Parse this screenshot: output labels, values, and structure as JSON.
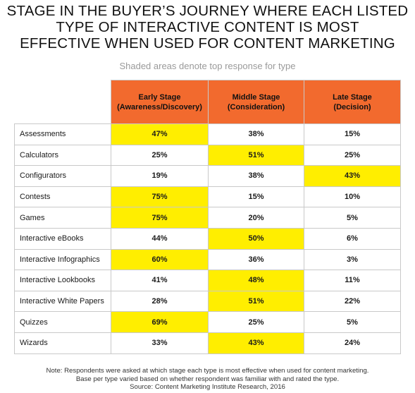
{
  "chart_data": {
    "type": "table",
    "title_lines": [
      "STAGE IN THE BUYER’S JOURNEY WHERE EACH LISTED",
      "TYPE OF INTERACTIVE CONTENT IS MOST",
      "EFFECTIVE WHEN USED FOR CONTENT MARKETING"
    ],
    "subtitle": "Shaded areas denote top response for type",
    "columns": [
      {
        "line1": "Early Stage",
        "line2": "(Awareness/Discovery)"
      },
      {
        "line1": "Middle Stage",
        "line2": "(Consideration)"
      },
      {
        "line1": "Late Stage",
        "line2": "(Decision)"
      }
    ],
    "rows": [
      {
        "label": "Assessments",
        "values": [
          "47%",
          "38%",
          "15%"
        ],
        "top": 0
      },
      {
        "label": "Calculators",
        "values": [
          "25%",
          "51%",
          "25%"
        ],
        "top": 1
      },
      {
        "label": "Configurators",
        "values": [
          "19%",
          "38%",
          "43%"
        ],
        "top": 2
      },
      {
        "label": "Contests",
        "values": [
          "75%",
          "15%",
          "10%"
        ],
        "top": 0
      },
      {
        "label": "Games",
        "values": [
          "75%",
          "20%",
          "5%"
        ],
        "top": 0
      },
      {
        "label": "Interactive eBooks",
        "values": [
          "44%",
          "50%",
          "6%"
        ],
        "top": 1
      },
      {
        "label": "Interactive Infographics",
        "values": [
          "60%",
          "36%",
          "3%"
        ],
        "top": 0
      },
      {
        "label": "Interactive Lookbooks",
        "values": [
          "41%",
          "48%",
          "11%"
        ],
        "top": 1
      },
      {
        "label": "Interactive White Papers",
        "values": [
          "28%",
          "51%",
          "22%"
        ],
        "top": 1
      },
      {
        "label": "Quizzes",
        "values": [
          "69%",
          "25%",
          "5%"
        ],
        "top": 0
      },
      {
        "label": "Wizards",
        "values": [
          "33%",
          "43%",
          "24%"
        ],
        "top": 1
      }
    ],
    "colors": {
      "header": "#f26a2e",
      "highlight": "#ffee00",
      "border": "#c9c9c9"
    },
    "notes": [
      "Note: Respondents were asked at which stage each type is most effective when used for content marketing.",
      "Base per type varied based on whether respondent was familiar with and rated the type.",
      "Source: Content Marketing Institute Research, 2016"
    ]
  }
}
